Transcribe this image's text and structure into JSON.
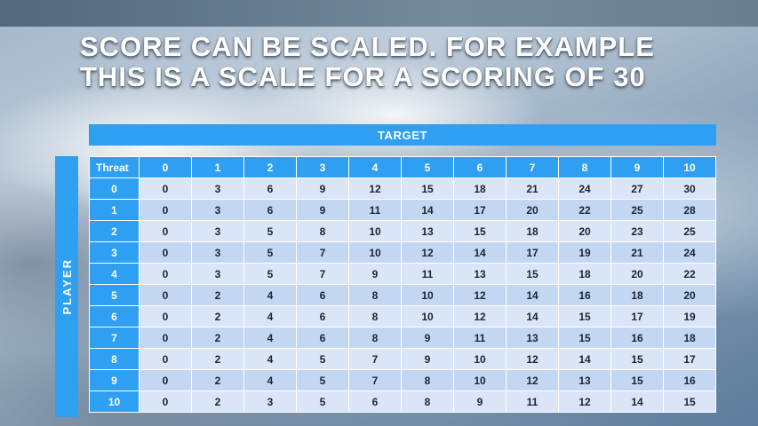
{
  "title": {
    "line1": "SCORE CAN BE SCALED. FOR EXAMPLE",
    "line2": "THIS IS A SCALE FOR A SCORING OF 30"
  },
  "table": {
    "target_label": "TARGET",
    "player_label": "PLAYER",
    "threat_label": "Threat",
    "col_headers": [
      "0",
      "1",
      "2",
      "3",
      "4",
      "5",
      "6",
      "7",
      "8",
      "9",
      "10"
    ],
    "rows": [
      {
        "label": "0",
        "values": [
          0,
          3,
          6,
          9,
          12,
          15,
          18,
          21,
          24,
          27,
          30
        ]
      },
      {
        "label": "1",
        "values": [
          0,
          3,
          6,
          9,
          11,
          14,
          17,
          20,
          22,
          25,
          28
        ]
      },
      {
        "label": "2",
        "values": [
          0,
          3,
          5,
          8,
          10,
          13,
          15,
          18,
          20,
          23,
          25
        ]
      },
      {
        "label": "3",
        "values": [
          0,
          3,
          5,
          7,
          10,
          12,
          14,
          17,
          19,
          21,
          24
        ]
      },
      {
        "label": "4",
        "values": [
          0,
          3,
          5,
          7,
          9,
          11,
          13,
          15,
          18,
          20,
          22
        ]
      },
      {
        "label": "5",
        "values": [
          0,
          2,
          4,
          6,
          8,
          10,
          12,
          14,
          16,
          18,
          20
        ]
      },
      {
        "label": "6",
        "values": [
          0,
          2,
          4,
          6,
          8,
          10,
          12,
          14,
          15,
          17,
          19
        ]
      },
      {
        "label": "7",
        "values": [
          0,
          2,
          4,
          6,
          8,
          9,
          11,
          13,
          15,
          16,
          18
        ]
      },
      {
        "label": "8",
        "values": [
          0,
          2,
          4,
          5,
          7,
          9,
          10,
          12,
          14,
          15,
          17
        ]
      },
      {
        "label": "9",
        "values": [
          0,
          2,
          4,
          5,
          7,
          8,
          10,
          12,
          13,
          15,
          16
        ]
      },
      {
        "label": "10",
        "values": [
          0,
          2,
          3,
          5,
          6,
          8,
          9,
          11,
          12,
          14,
          15
        ]
      }
    ]
  },
  "colors": {
    "accent_blue": "#2f9ff2",
    "row_light": "#dae5f7",
    "row_dark": "#c4d7f2",
    "title_text": "#ffffff",
    "cell_text": "#1b2433"
  }
}
